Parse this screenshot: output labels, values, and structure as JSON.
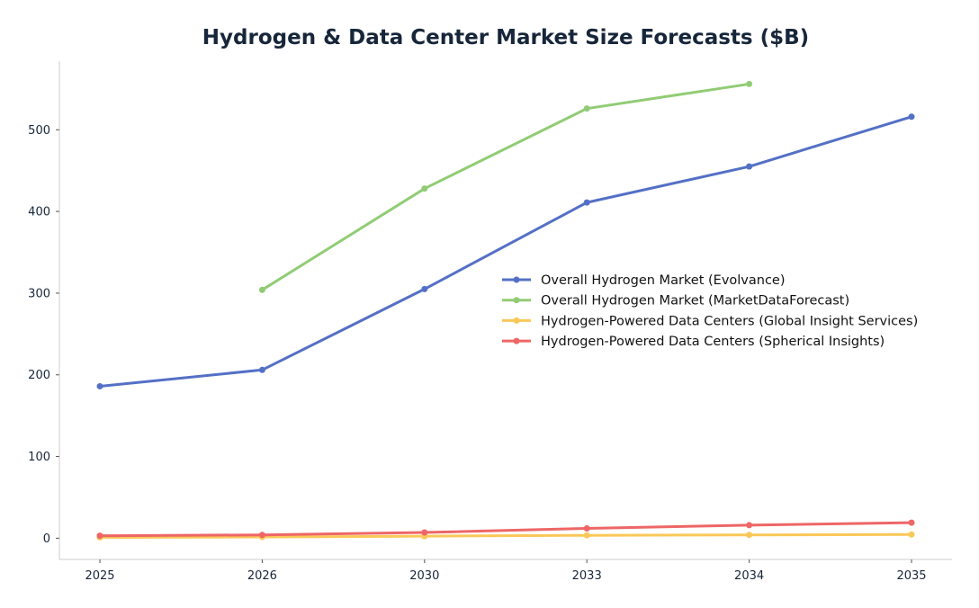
{
  "chart_data": {
    "type": "line",
    "title": "Hydrogen & Data Center Market Size Forecasts ($B)",
    "xlabel": "",
    "ylabel": "",
    "categories": [
      "2025",
      "2026",
      "2030",
      "2033",
      "2034",
      "2035"
    ],
    "ylim": [
      -26,
      584
    ],
    "yticks": [
      0,
      100,
      200,
      300,
      400,
      500
    ],
    "grid": false,
    "legend_position": "center-right",
    "series": [
      {
        "name": "Overall Hydrogen Market (Evolvance)",
        "color": "#5470c6",
        "values": [
          186,
          206,
          305,
          411,
          455,
          516
        ]
      },
      {
        "name": "Overall Hydrogen Market (MarketDataForecast)",
        "color": "#91cc75",
        "values": [
          null,
          304,
          428,
          526,
          556,
          null
        ]
      },
      {
        "name": "Hydrogen-Powered Data Centers (Global Insight Services)",
        "color": "#fac858",
        "values": [
          1,
          1.5,
          2.5,
          3.5,
          4,
          4.5
        ]
      },
      {
        "name": "Hydrogen-Powered Data Centers (Spherical Insights)",
        "color": "#ee6666",
        "values": [
          3,
          4,
          7,
          12,
          16,
          19
        ]
      }
    ]
  }
}
